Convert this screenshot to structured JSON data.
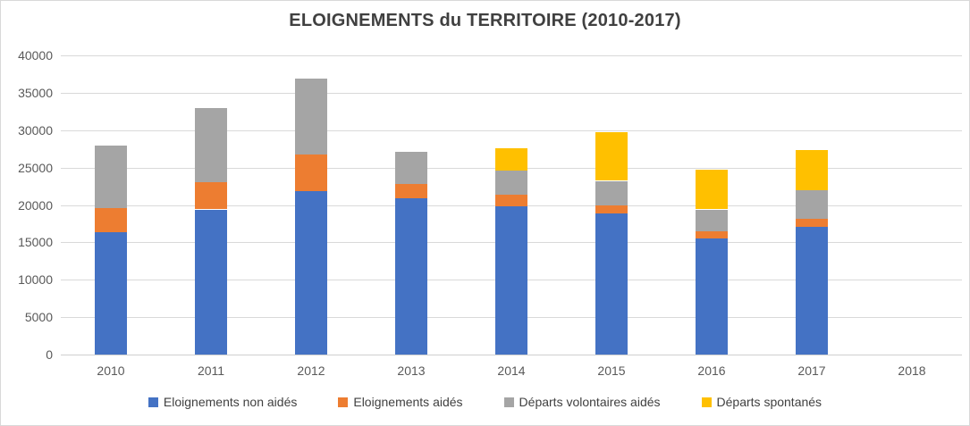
{
  "chart_data": {
    "type": "bar",
    "stacked": true,
    "title": "ELOIGNEMENTS du TERRITOIRE (2010-2017)",
    "categories": [
      "2010",
      "2011",
      "2012",
      "2013",
      "2014",
      "2015",
      "2016",
      "2017",
      "2018"
    ],
    "series": [
      {
        "name": "Eloignements non aidés",
        "color": "#4472C4",
        "values": [
          16400,
          19400,
          21900,
          20900,
          19900,
          18900,
          15500,
          17100,
          0
        ]
      },
      {
        "name": "Eloignements aidés",
        "color": "#ED7D31",
        "values": [
          3300,
          3600,
          4900,
          1900,
          1500,
          1100,
          1000,
          1100,
          0
        ]
      },
      {
        "name": "Départs volontaires aidés",
        "color": "#A5A5A5",
        "values": [
          8300,
          9900,
          10100,
          4300,
          3200,
          3200,
          2900,
          3800,
          0
        ]
      },
      {
        "name": "Départs spontanés",
        "color": "#FFC000",
        "values": [
          0,
          0,
          0,
          0,
          3000,
          6500,
          5300,
          5400,
          0
        ]
      }
    ],
    "xlabel": "",
    "ylabel": "",
    "ylim": [
      0,
      40000
    ],
    "ytick_step": 5000,
    "yticks": [
      "0",
      "5000",
      "10000",
      "15000",
      "20000",
      "25000",
      "30000",
      "35000",
      "40000"
    ],
    "grid": true,
    "legend_position": "bottom"
  },
  "style_colors": {
    "gridline": "#d9d9d9",
    "axis_text": "#595959",
    "title_text": "#404040",
    "background": "#ffffff",
    "frame_border": "#d9d9d9"
  }
}
